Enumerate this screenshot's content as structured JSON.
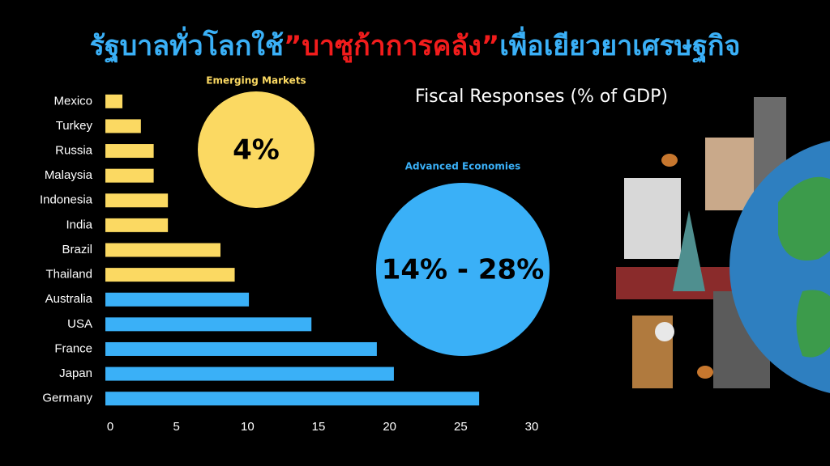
{
  "chart_data": {
    "type": "bar",
    "orientation": "horizontal",
    "title_parts": [
      {
        "text": "รัฐบาลทั่วโลกใช้",
        "color": "#3ab0f7"
      },
      {
        "text": "”บาซูก้าการคลัง”",
        "color": "#f21c1c"
      },
      {
        "text": "เพื่อเยียวยาเศรษฐกิจ",
        "color": "#3ab0f7"
      }
    ],
    "subtitle": "Fiscal Responses (% of GDP)",
    "categories": [
      "Mexico",
      "Turkey",
      "Russia",
      "Malaysia",
      "Indonesia",
      "India",
      "Brazil",
      "Thailand",
      "Australia",
      "USA",
      "France",
      "Japan",
      "Germany"
    ],
    "values": [
      1.2,
      2.5,
      3.4,
      3.4,
      4.4,
      4.4,
      8.1,
      9.1,
      10.1,
      14.5,
      19.1,
      20.3,
      26.3
    ],
    "colors": [
      "#fbd962",
      "#fbd962",
      "#fbd962",
      "#fbd962",
      "#fbd962",
      "#fbd962",
      "#fbd962",
      "#fbd962",
      "#3ab0f7",
      "#3ab0f7",
      "#3ab0f7",
      "#3ab0f7",
      "#3ab0f7"
    ],
    "xlim": [
      0,
      30
    ],
    "xticks": [
      0,
      5,
      10,
      15,
      20,
      25,
      30
    ],
    "grid": false,
    "groups": [
      {
        "name": "Emerging Markets",
        "label": "4%",
        "color": "#fbd962"
      },
      {
        "name": "Advanced Economies",
        "label": "14% - 28%",
        "color": "#3ab0f7"
      }
    ]
  }
}
